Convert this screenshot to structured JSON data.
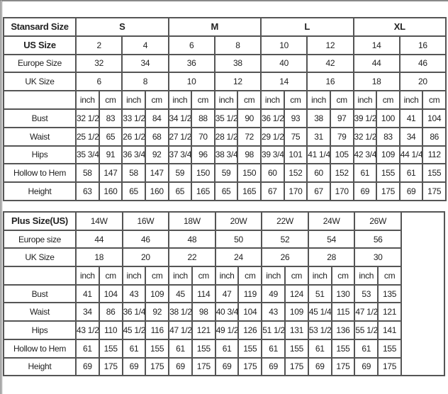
{
  "standard_table": {
    "header_label": "Stansard Size",
    "size_groups": [
      "S",
      "M",
      "L",
      "XL"
    ],
    "us_label": "US Size",
    "us_sizes": [
      "2",
      "4",
      "6",
      "8",
      "10",
      "12",
      "14",
      "16"
    ],
    "europe_label": "Europe Size",
    "europe_sizes": [
      "32",
      "34",
      "36",
      "38",
      "40",
      "42",
      "44",
      "46"
    ],
    "uk_label": "UK Size",
    "uk_sizes": [
      "6",
      "8",
      "10",
      "12",
      "14",
      "16",
      "18",
      "20"
    ],
    "unit_labels": [
      "inch",
      "cm"
    ],
    "rows": [
      {
        "label": "Bust",
        "values": [
          "32 1/2",
          "83",
          "33 1/2",
          "84",
          "34 1/2",
          "88",
          "35 1/2",
          "90",
          "36 1/2",
          "93",
          "38",
          "97",
          "39 1/2",
          "100",
          "41",
          "104"
        ]
      },
      {
        "label": "Waist",
        "values": [
          "25 1/2",
          "65",
          "26 1/2",
          "68",
          "27 1/2",
          "70",
          "28 1/2",
          "72",
          "29 1/2",
          "75",
          "31",
          "79",
          "32 1/2",
          "83",
          "34",
          "86"
        ]
      },
      {
        "label": "Hips",
        "values": [
          "35 3/4",
          "91",
          "36 3/4",
          "92",
          "37 3/4",
          "96",
          "38 3/4",
          "98",
          "39 3/4",
          "101",
          "41 1/4",
          "105",
          "42 3/4",
          "109",
          "44 1/4",
          "112"
        ]
      },
      {
        "label": "Hollow to Hem",
        "values": [
          "58",
          "147",
          "58",
          "147",
          "59",
          "150",
          "59",
          "150",
          "60",
          "152",
          "60",
          "152",
          "61",
          "155",
          "61",
          "155"
        ]
      },
      {
        "label": "Height",
        "values": [
          "63",
          "160",
          "65",
          "160",
          "65",
          "165",
          "65",
          "165",
          "67",
          "170",
          "67",
          "170",
          "69",
          "175",
          "69",
          "175"
        ]
      }
    ]
  },
  "plus_table": {
    "header_label": "Plus Size(US)",
    "us_sizes": [
      "14W",
      "16W",
      "18W",
      "20W",
      "22W",
      "24W",
      "26W"
    ],
    "europe_label": "Europe size",
    "europe_sizes": [
      "44",
      "46",
      "48",
      "50",
      "52",
      "54",
      "56"
    ],
    "uk_label": "UK Size",
    "uk_sizes": [
      "18",
      "20",
      "22",
      "24",
      "26",
      "28",
      "30"
    ],
    "unit_labels": [
      "inch",
      "cm"
    ],
    "rows": [
      {
        "label": "Bust",
        "values": [
          "41",
          "104",
          "43",
          "109",
          "45",
          "114",
          "47",
          "119",
          "49",
          "124",
          "51",
          "130",
          "53",
          "135"
        ]
      },
      {
        "label": "Waist",
        "values": [
          "34",
          "86",
          "36 1/4",
          "92",
          "38 1/2",
          "98",
          "40 3/4",
          "104",
          "43",
          "109",
          "45 1/4",
          "115",
          "47 1/2",
          "121"
        ]
      },
      {
        "label": "Hips",
        "values": [
          "43 1/2",
          "110",
          "45 1/2",
          "116",
          "47 1/2",
          "121",
          "49 1/2",
          "126",
          "51 1/2",
          "131",
          "53 1/2",
          "136",
          "55 1/2",
          "141"
        ]
      },
      {
        "label": "Hollow to Hem",
        "values": [
          "61",
          "155",
          "61",
          "155",
          "61",
          "155",
          "61",
          "155",
          "61",
          "155",
          "61",
          "155",
          "61",
          "155"
        ]
      },
      {
        "label": "Height",
        "values": [
          "69",
          "175",
          "69",
          "175",
          "69",
          "175",
          "69",
          "175",
          "69",
          "175",
          "69",
          "175",
          "69",
          "175"
        ]
      }
    ]
  }
}
